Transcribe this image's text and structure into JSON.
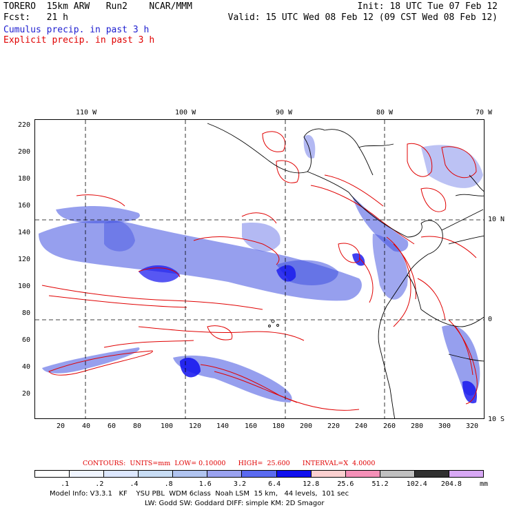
{
  "header": {
    "line1_left": "TORERO  15km ARW   Run2    NCAR/MMM",
    "line1_right": "Init: 18 UTC Tue 07 Feb 12",
    "line2_left": "Fcst:   21 h",
    "line2_right": "Valid: 15 UTC Wed 08 Feb 12 (09 CST Wed 08 Feb 12)",
    "cumulus_label": "Cumulus precip. in past 3 h",
    "explicit_label": "Explicit precip. in past 3 h"
  },
  "map": {
    "top_lon_labels": [
      "110 W",
      "100 W",
      "90 W",
      "80 W",
      "70 W"
    ],
    "right_lat_labels": [
      "10 N",
      "0",
      "10 S"
    ],
    "y_ticks": [
      "220",
      "200",
      "180",
      "160",
      "140",
      "120",
      "100",
      "80",
      "60",
      "40",
      "20"
    ],
    "x_ticks": [
      "20",
      "40",
      "60",
      "80",
      "100",
      "120",
      "140",
      "160",
      "180",
      "200",
      "220",
      "240",
      "260",
      "280",
      "300",
      "320"
    ],
    "land_color": "#000000",
    "cumulus_color": "#4050e0",
    "explicit_color": "#e00000"
  },
  "contours": {
    "text": "CONTOURS:  UNITS=mm  LOW= 0.10000      HIGH=  25.600      INTERVAL=X  4.0000"
  },
  "colorbar": {
    "labels": [
      ".1",
      ".2",
      ".4",
      ".8",
      "1.6",
      "3.2",
      "6.4",
      "12.8",
      "25.6",
      "51.2",
      "102.4",
      "204.8"
    ],
    "unit": "mm",
    "colors": [
      "#ffffff",
      "#f0f5ff",
      "#dde8ff",
      "#c8ddf5",
      "#b0c4f0",
      "#9aa2f0",
      "#5a6af0",
      "#1010ee",
      "#fbd0d0",
      "#f590b8",
      "#c0c0c0",
      "#303030",
      "#d8a8f5"
    ]
  },
  "footer": {
    "line1": "Model Info: V3.3.1   KF    YSU PBL  WDM 6class  Noah LSM  15 km,   44 levels,  101 sec",
    "line2": "LW: Godd SW: Goddard DIFF: simple KM: 2D Smagor"
  }
}
